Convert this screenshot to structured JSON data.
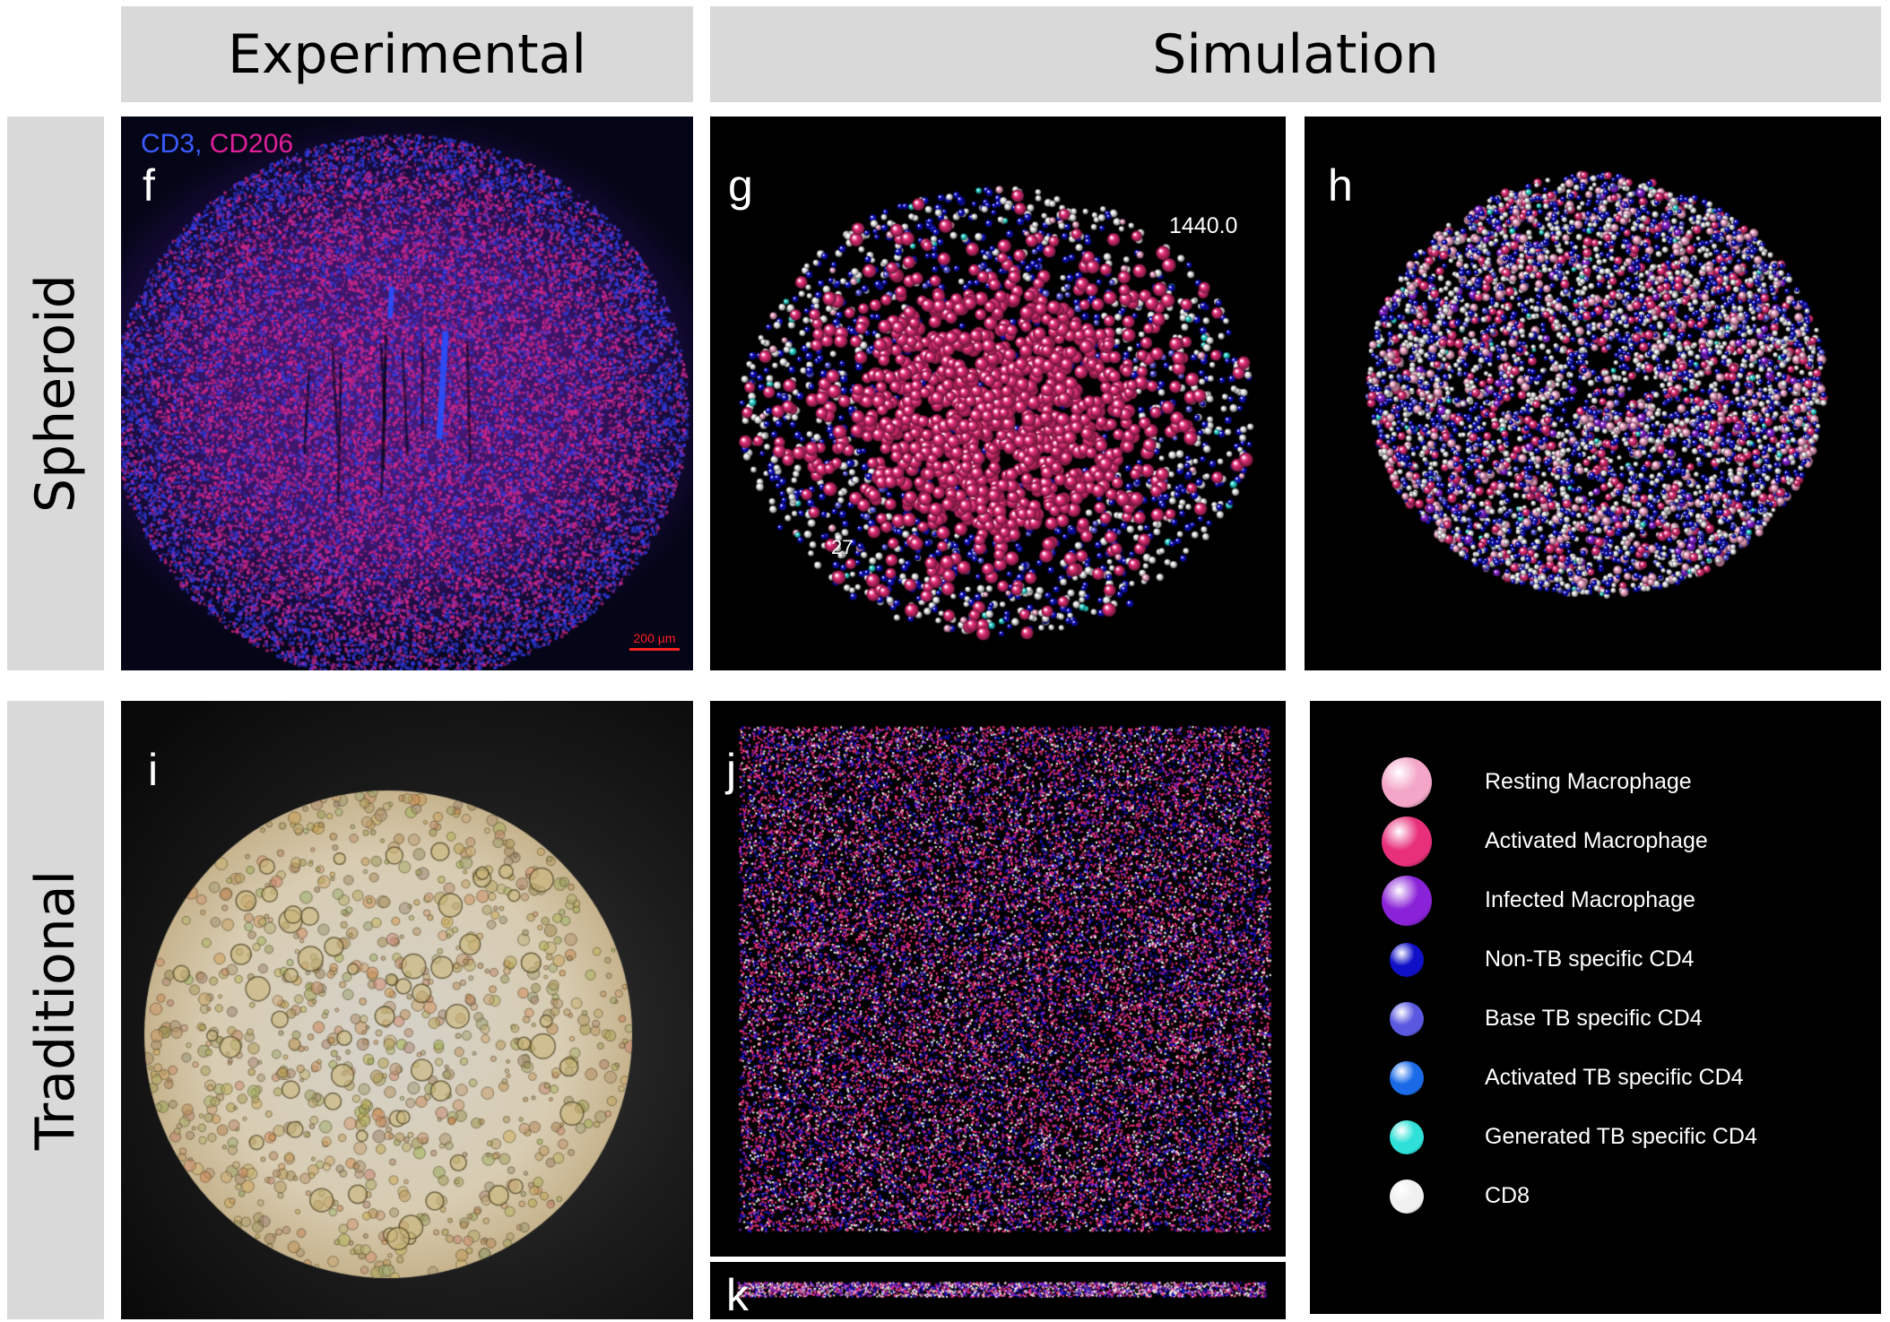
{
  "headers": {
    "experimental": "Experimental",
    "simulation": "Simulation"
  },
  "rows": {
    "spheroid": "Spheroid",
    "traditional": "Traditional"
  },
  "panels": {
    "f": {
      "label": "f",
      "stain_cd3": "CD3,",
      "stain_cd206": "CD206",
      "scale_bar": "200 µm"
    },
    "g": {
      "label": "g",
      "time_text": "1440.0",
      "count_text": "27"
    },
    "h": {
      "label": "h"
    },
    "i": {
      "label": "i"
    },
    "j": {
      "label": "j"
    },
    "k": {
      "label": "k"
    }
  },
  "legend": {
    "items": [
      {
        "label": "Resting Macrophage",
        "color": "#f4a6c8",
        "icon": "sphere-resting-macrophage"
      },
      {
        "label": "Activated Macrophage",
        "color": "#e8307a",
        "icon": "sphere-activated-macrophage"
      },
      {
        "label": "Infected Macrophage",
        "color": "#8a22d8",
        "icon": "sphere-infected-macrophage"
      },
      {
        "label": "Non-TB specific CD4",
        "color": "#1010c8",
        "icon": "sphere-non-tb-cd4"
      },
      {
        "label": "Base TB specific CD4",
        "color": "#5a58e0",
        "icon": "sphere-base-tb-cd4"
      },
      {
        "label": "Activated TB specific CD4",
        "color": "#1a6ae8",
        "icon": "sphere-activated-tb-cd4"
      },
      {
        "label": "Generated TB specific CD4",
        "color": "#2ee0d8",
        "icon": "sphere-generated-tb-cd4"
      },
      {
        "label": "CD8",
        "color": "#f0f0f0",
        "icon": "sphere-cd8"
      }
    ]
  },
  "colors": {
    "header_bg": "#d9d9d9",
    "panel_bg": "#000000",
    "cd3_blue": "#3a5cff",
    "cd206_magenta": "#e0209a",
    "scale_bar_red": "#ff2020"
  }
}
